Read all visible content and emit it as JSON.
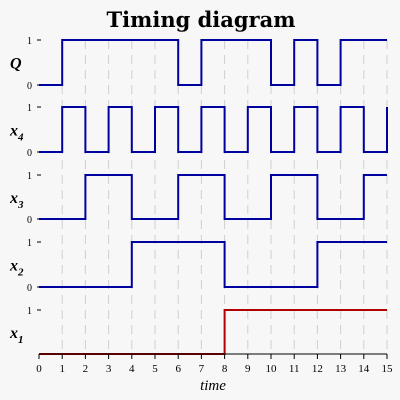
{
  "chart_data": {
    "type": "line",
    "title": "Timing diagram",
    "xlabel": "time",
    "xlim": [
      0,
      15
    ],
    "x_ticks": [
      "0",
      "1",
      "2",
      "3",
      "4",
      "5",
      "6",
      "7",
      "8",
      "9",
      "10",
      "11",
      "12",
      "13",
      "14",
      "15"
    ],
    "level_labels": [
      "0",
      "1"
    ],
    "grid": "vertical dashed",
    "series": [
      {
        "name": "Q",
        "sub": "",
        "color": "#00009f",
        "t": [
          0,
          1,
          6,
          7,
          10,
          11,
          12,
          13,
          15
        ],
        "v": [
          0,
          1,
          0,
          1,
          0,
          1,
          0,
          1,
          1
        ]
      },
      {
        "name": "x",
        "sub": "4",
        "color": "#00009f",
        "t": [
          0,
          1,
          2,
          3,
          4,
          5,
          6,
          7,
          8,
          9,
          10,
          11,
          12,
          13,
          14,
          15
        ],
        "v": [
          0,
          1,
          0,
          1,
          0,
          1,
          0,
          1,
          0,
          1,
          0,
          1,
          0,
          1,
          0,
          1
        ]
      },
      {
        "name": "x",
        "sub": "3",
        "color": "#00009f",
        "t": [
          0,
          2,
          4,
          6,
          8,
          10,
          12,
          14,
          15
        ],
        "v": [
          0,
          1,
          0,
          1,
          0,
          1,
          0,
          1,
          1
        ]
      },
      {
        "name": "x",
        "sub": "2",
        "color": "#00009f",
        "t": [
          0,
          4,
          8,
          12,
          15
        ],
        "v": [
          0,
          1,
          0,
          1,
          1
        ]
      },
      {
        "name": "x",
        "sub": "1",
        "color": "#b00000",
        "t": [
          0,
          8,
          15
        ],
        "v": [
          0,
          1,
          1
        ]
      }
    ]
  }
}
